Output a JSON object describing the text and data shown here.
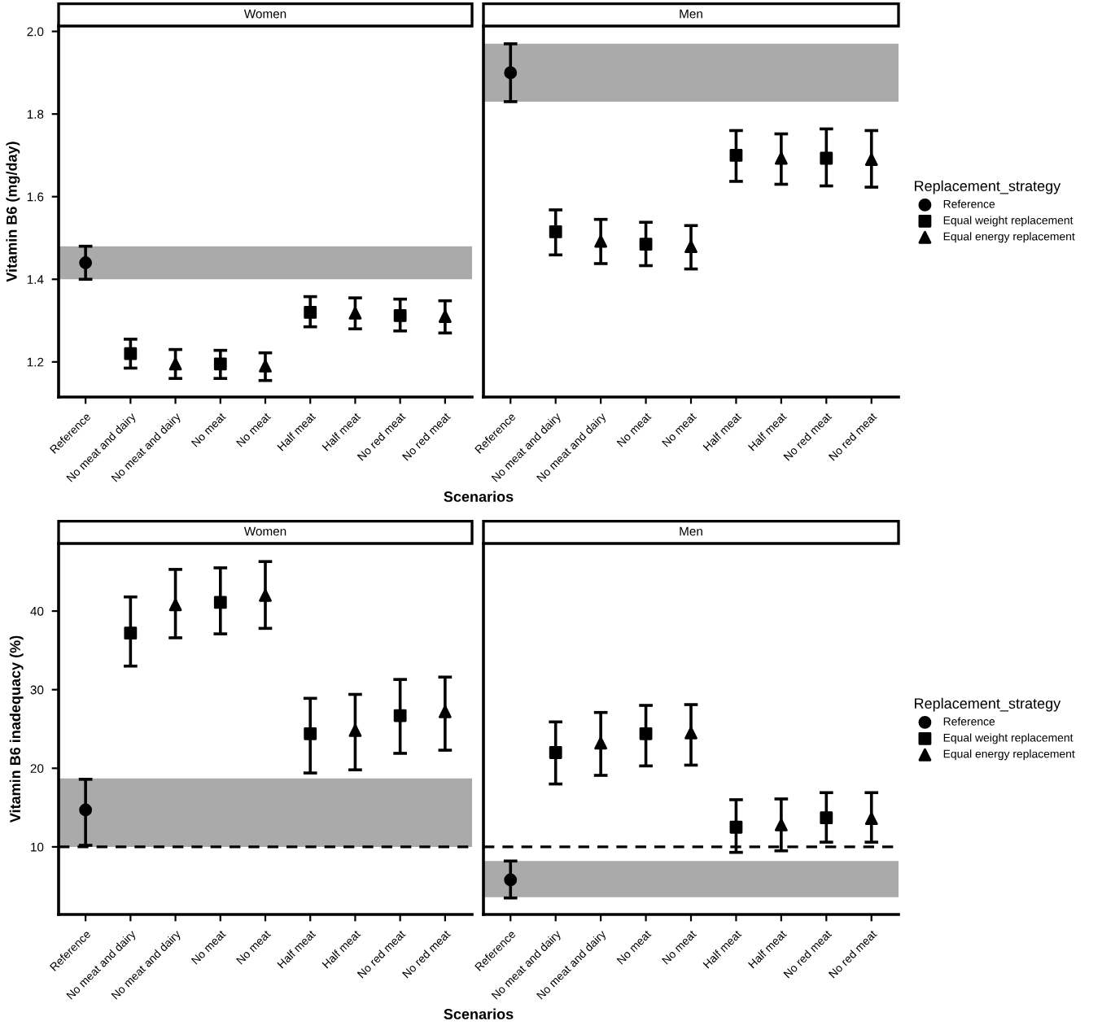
{
  "chart_data": [
    {
      "type": "scatter",
      "title": "Women",
      "ylabel": "Vitamin B6 (mg/day)",
      "xlabel": "Scenarios",
      "categories": [
        "Reference",
        "No meat and dairy",
        "No meat and dairy",
        "No meat",
        "No meat",
        "Half meat",
        "Half meat",
        "No red meat",
        "No red meat"
      ],
      "series": [
        {
          "color": "#000000",
          "marker": "circle",
          "values": [
            1.44,
            null,
            null,
            null,
            null,
            null,
            null,
            null,
            null
          ],
          "errors": [
            [
              1.4,
              1.48
            ],
            null,
            null,
            null,
            null,
            null,
            null,
            null,
            null
          ]
        },
        {
          "color": "#000000",
          "marker": "square",
          "values": [
            null,
            1.22,
            null,
            1.195,
            null,
            1.32,
            null,
            1.312,
            null
          ],
          "errors": [
            null,
            [
              1.185,
              1.255
            ],
            null,
            [
              1.16,
              1.228
            ],
            null,
            [
              1.285,
              1.358
            ],
            null,
            [
              1.275,
              1.352
            ],
            null
          ]
        },
        {
          "color": "#000000",
          "marker": "triangle",
          "values": [
            null,
            null,
            1.195,
            null,
            1.19,
            null,
            1.318,
            null,
            1.31
          ],
          "errors": [
            null,
            null,
            [
              1.16,
              1.23
            ],
            null,
            [
              1.155,
              1.222
            ],
            null,
            [
              1.28,
              1.355
            ],
            null,
            [
              1.27,
              1.348
            ]
          ]
        }
      ],
      "ylim": [
        1.115,
        2.013
      ],
      "yticks": [
        1.2,
        1.4,
        1.6,
        1.8,
        {
          "value": 2.0,
          "label": "2.0"
        }
      ],
      "bands": [
        {
          "axis": "y",
          "from": 1.4,
          "to": 1.48,
          "color": "#aaaaaa"
        }
      ],
      "grid": false,
      "legend": false
    },
    {
      "type": "scatter",
      "title": "Men",
      "legend_title": "Replacement_strategy",
      "categories": [
        "Reference",
        "No meat and dairy",
        "No meat and dairy",
        "No meat",
        "No meat",
        "Half meat",
        "Half meat",
        "No red meat",
        "No red meat"
      ],
      "series": [
        {
          "name": "Reference",
          "color": "#000000",
          "marker": "circle",
          "values": [
            1.9,
            null,
            null,
            null,
            null,
            null,
            null,
            null,
            null
          ],
          "errors": [
            [
              1.83,
              1.97
            ],
            null,
            null,
            null,
            null,
            null,
            null,
            null,
            null
          ]
        },
        {
          "name": "Equal weight replacement",
          "color": "#000000",
          "marker": "square",
          "values": [
            null,
            1.515,
            null,
            1.485,
            null,
            1.7,
            null,
            1.693,
            null
          ],
          "errors": [
            null,
            [
              1.459,
              1.568
            ],
            null,
            [
              1.433,
              1.538
            ],
            null,
            [
              1.637,
              1.76
            ],
            null,
            [
              1.626,
              1.764
            ],
            null
          ]
        },
        {
          "name": "Equal energy replacement",
          "color": "#000000",
          "marker": "triangle",
          "values": [
            null,
            null,
            1.492,
            null,
            1.479,
            null,
            1.693,
            null,
            1.69
          ],
          "errors": [
            null,
            null,
            [
              1.438,
              1.545
            ],
            null,
            [
              1.425,
              1.53
            ],
            null,
            [
              1.63,
              1.752
            ],
            null,
            [
              1.623,
              1.76
            ]
          ]
        }
      ],
      "ylim": [
        1.115,
        2.013
      ],
      "tick_labels": "x",
      "bands": [
        {
          "axis": "y",
          "from": 1.83,
          "to": 1.97,
          "color": "#aaaaaa"
        }
      ],
      "grid": false,
      "legend": "right"
    },
    {
      "type": "scatter",
      "title": "Women",
      "ylabel": "Vitamin B6 inadequacy (%)",
      "xlabel": "Scenarios",
      "categories": [
        "Reference",
        "No meat and dairy",
        "No meat and dairy",
        "No meat",
        "No meat",
        "Half meat",
        "Half meat",
        "No red meat",
        "No red meat"
      ],
      "series": [
        {
          "color": "#000000",
          "marker": "circle",
          "values": [
            14.7,
            null,
            null,
            null,
            null,
            null,
            null,
            null,
            null
          ],
          "errors": [
            [
              10.2,
              18.6
            ],
            null,
            null,
            null,
            null,
            null,
            null,
            null,
            null
          ]
        },
        {
          "color": "#000000",
          "marker": "square",
          "values": [
            null,
            37.2,
            null,
            41.1,
            null,
            24.4,
            null,
            26.7,
            null
          ],
          "errors": [
            null,
            [
              33.0,
              41.8
            ],
            null,
            [
              37.1,
              45.5
            ],
            null,
            [
              19.4,
              28.9
            ],
            null,
            [
              21.9,
              31.3
            ],
            null
          ]
        },
        {
          "color": "#000000",
          "marker": "triangle",
          "values": [
            null,
            null,
            40.8,
            null,
            42.0,
            null,
            24.8,
            null,
            27.2
          ],
          "errors": [
            null,
            null,
            [
              36.6,
              45.3
            ],
            null,
            [
              37.8,
              46.3
            ],
            null,
            [
              19.8,
              29.4
            ],
            null,
            [
              22.3,
              31.6
            ]
          ]
        }
      ],
      "ylim": [
        1.4,
        48.6
      ],
      "yticks": [
        10,
        20,
        30,
        40
      ],
      "bands": [
        {
          "axis": "y",
          "from": 10,
          "to": 18.7,
          "color": "#aaaaaa"
        }
      ],
      "ref_lines": [
        {
          "axis": "y",
          "value": 10,
          "line_style": "dashed",
          "color": "#000000"
        }
      ],
      "grid": false,
      "legend": false
    },
    {
      "type": "scatter",
      "title": "Men",
      "legend_title": "Replacement_strategy",
      "categories": [
        "Reference",
        "No meat and dairy",
        "No meat and dairy",
        "No meat",
        "No meat",
        "Half meat",
        "Half meat",
        "No red meat",
        "No red meat"
      ],
      "series": [
        {
          "name": "Reference",
          "color": "#000000",
          "marker": "circle",
          "values": [
            5.8,
            null,
            null,
            null,
            null,
            null,
            null,
            null,
            null
          ],
          "errors": [
            [
              3.5,
              8.2
            ],
            null,
            null,
            null,
            null,
            null,
            null,
            null,
            null
          ]
        },
        {
          "name": "Equal weight replacement",
          "color": "#000000",
          "marker": "square",
          "values": [
            null,
            22.0,
            null,
            24.4,
            null,
            12.5,
            null,
            13.7,
            null
          ],
          "errors": [
            null,
            [
              18.0,
              25.9
            ],
            null,
            [
              20.3,
              28.0
            ],
            null,
            [
              9.3,
              16.0
            ],
            null,
            [
              10.6,
              16.9
            ],
            null
          ]
        },
        {
          "name": "Equal energy replacement",
          "color": "#000000",
          "marker": "triangle",
          "values": [
            null,
            null,
            23.2,
            null,
            24.5,
            null,
            12.8,
            null,
            13.6
          ],
          "errors": [
            null,
            null,
            [
              19.1,
              27.1
            ],
            null,
            [
              20.4,
              28.1
            ],
            null,
            [
              9.5,
              16.1
            ],
            null,
            [
              10.6,
              16.9
            ]
          ]
        }
      ],
      "ylim": [
        1.4,
        48.6
      ],
      "tick_labels": "x",
      "bands": [
        {
          "axis": "y",
          "from": 3.6,
          "to": 8.2,
          "color": "#aaaaaa"
        }
      ],
      "ref_lines": [
        {
          "axis": "y",
          "value": 10,
          "line_style": "dashed",
          "color": "#000000"
        }
      ],
      "grid": false,
      "legend": "right"
    }
  ]
}
